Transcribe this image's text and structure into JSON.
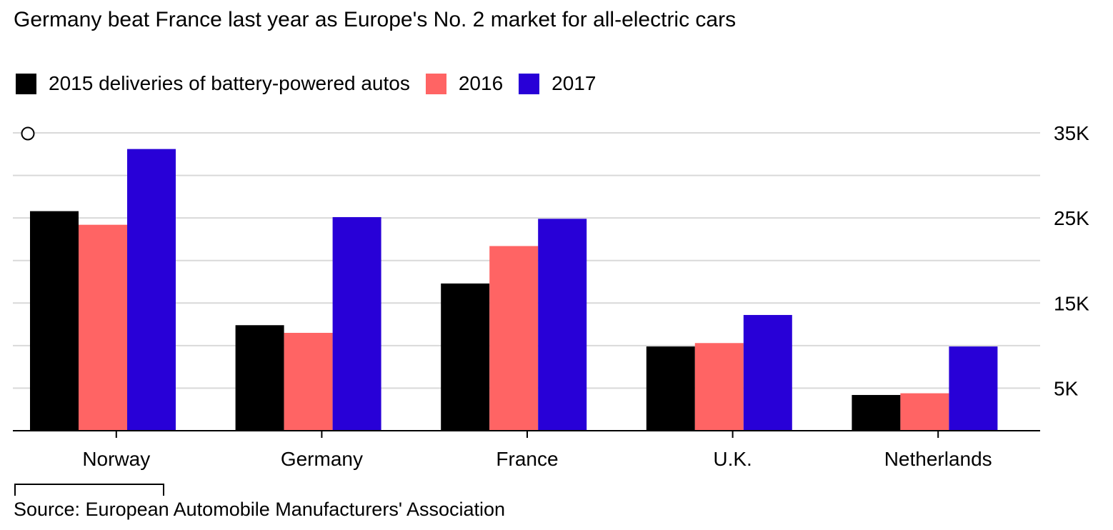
{
  "chart_data": {
    "type": "bar",
    "title": "Germany beat France last year as Europe's No. 2 market for all-electric cars",
    "categories": [
      "Norway",
      "Germany",
      "France",
      "U.K.",
      "Netherlands"
    ],
    "series": [
      {
        "name": "2015 deliveries of battery-powered autos",
        "color": "#000000",
        "values": [
          25800,
          12400,
          17300,
          9900,
          4200
        ]
      },
      {
        "name": "2016",
        "color": "#ff6464",
        "values": [
          24200,
          11500,
          21700,
          10300,
          4400
        ]
      },
      {
        "name": "2017",
        "color": "#2800d7",
        "values": [
          33100,
          25100,
          24900,
          13600,
          9900
        ]
      }
    ],
    "ylim": [
      0,
      35000
    ],
    "yticks": [
      5000,
      10000,
      15000,
      20000,
      25000,
      30000,
      35000
    ],
    "ytick_labels": [
      "5K",
      "15K",
      "25K",
      "35K"
    ],
    "yaxis_position": "right",
    "grid": true,
    "legend_position": "top-left",
    "source": "Source: European Automobile Manufacturers' Association"
  }
}
